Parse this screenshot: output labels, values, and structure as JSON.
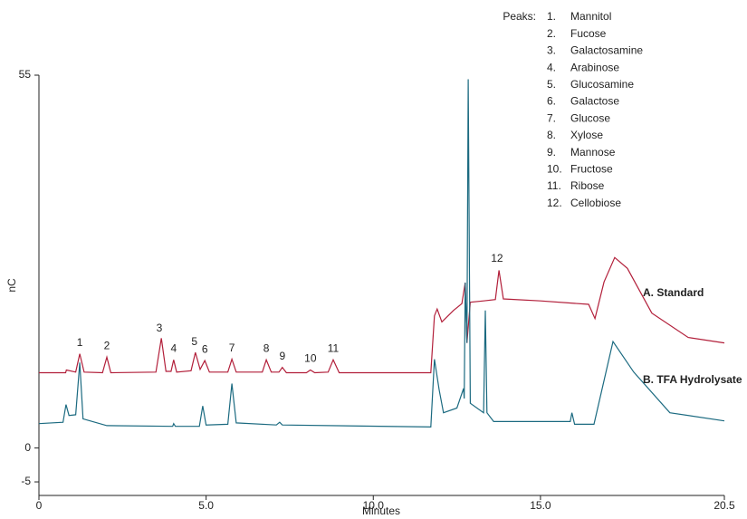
{
  "chart_data": {
    "type": "line",
    "x_label": "Minutes",
    "y_label": "nC",
    "xlim": [
      0,
      20.5
    ],
    "ylim": [
      -7,
      55
    ],
    "xticks": [
      0,
      {
        "value": 5,
        "label": "5.0"
      },
      {
        "value": 10,
        "label": "10.0"
      },
      {
        "value": 15,
        "label": "15.0"
      },
      20.5
    ],
    "yticks": [
      55,
      0,
      -5
    ],
    "series": [
      {
        "name": "A. Standard",
        "color": "#b21f3a",
        "x": [
          0,
          0.8,
          0.82,
          1.1,
          1.22,
          1.35,
          1.9,
          2.03,
          2.15,
          3.5,
          3.66,
          3.8,
          3.95,
          4.03,
          4.12,
          4.55,
          4.68,
          4.82,
          4.96,
          5.1,
          5.65,
          5.77,
          5.9,
          6.68,
          6.8,
          6.95,
          7.18,
          7.28,
          7.4,
          8.0,
          8.12,
          8.25,
          8.65,
          8.8,
          8.98,
          11.72,
          11.83,
          11.91,
          12.05,
          12.4,
          12.65,
          12.75,
          12.8,
          12.9,
          13.3,
          13.65,
          13.76,
          13.89,
          15.0,
          16.44,
          16.63,
          16.9,
          17.22,
          17.6,
          18.33,
          19.42,
          20.5
        ],
        "values": [
          11.1,
          11.1,
          11.5,
          11.2,
          13.9,
          11.2,
          11.1,
          13.4,
          11.1,
          11.2,
          16.2,
          11.3,
          11.3,
          13.0,
          11.2,
          11.4,
          14.1,
          11.6,
          12.9,
          11.2,
          11.2,
          13.1,
          11.2,
          11.2,
          13.0,
          11.2,
          11.2,
          11.9,
          11.1,
          11.1,
          11.5,
          11.1,
          11.2,
          13.0,
          11.1,
          11.1,
          19.5,
          20.5,
          18.6,
          20.3,
          21.3,
          24.4,
          15.5,
          21.5,
          21.7,
          21.9,
          26.2,
          22.0,
          21.7,
          21.2,
          19.1,
          24.5,
          28.1,
          26.5,
          19.9,
          16.3,
          15.5
        ]
      },
      {
        "name": "B. TFA Hydrolysate",
        "color": "#1b6a80",
        "x": [
          0,
          0.72,
          0.81,
          0.9,
          1.1,
          1.22,
          1.32,
          2.03,
          4.0,
          4.03,
          4.08,
          4.8,
          4.9,
          5.0,
          5.65,
          5.77,
          5.9,
          7.1,
          7.2,
          7.28,
          11.72,
          11.83,
          11.97,
          12.1,
          12.5,
          12.7,
          12.72,
          12.75,
          12.8,
          12.84,
          12.9,
          13.3,
          13.35,
          13.4,
          13.6,
          15.89,
          15.94,
          16.02,
          16.6,
          17.17,
          17.79,
          18.87,
          20.5
        ],
        "values": [
          3.6,
          3.8,
          6.4,
          4.8,
          4.9,
          12.6,
          4.3,
          3.3,
          3.2,
          3.6,
          3.2,
          3.2,
          6.2,
          3.4,
          3.5,
          9.5,
          3.7,
          3.4,
          3.8,
          3.4,
          3.1,
          13.1,
          8.6,
          5.2,
          5.9,
          8.8,
          7.3,
          24.4,
          15.5,
          54.4,
          6.6,
          5.2,
          20.3,
          5.2,
          3.9,
          3.9,
          5.2,
          3.5,
          3.5,
          15.7,
          11.2,
          5.2,
          4.0
        ]
      }
    ],
    "peak_labels": [
      {
        "label": "1",
        "x": 1.22,
        "y": 15.5
      },
      {
        "label": "2",
        "x": 2.03,
        "y": 15.0
      },
      {
        "label": "3",
        "x": 3.6,
        "y": 17.6
      },
      {
        "label": "4",
        "x": 4.03,
        "y": 14.6
      },
      {
        "label": "5",
        "x": 4.65,
        "y": 15.6
      },
      {
        "label": "6",
        "x": 4.96,
        "y": 14.5
      },
      {
        "label": "7",
        "x": 5.77,
        "y": 14.7
      },
      {
        "label": "8",
        "x": 6.8,
        "y": 14.6
      },
      {
        "label": "9",
        "x": 7.28,
        "y": 13.5
      },
      {
        "label": "10",
        "x": 8.12,
        "y": 13.1
      },
      {
        "label": "11",
        "x": 8.8,
        "y": 14.6
      },
      {
        "label": "12",
        "x": 13.7,
        "y": 27.9
      }
    ],
    "peaks_title": "Peaks:",
    "peaks_list": [
      {
        "number": "1.",
        "name": "Mannitol"
      },
      {
        "number": "2.",
        "name": "Fucose"
      },
      {
        "number": "3.",
        "name": "Galactosamine"
      },
      {
        "number": "4.",
        "name": "Arabinose"
      },
      {
        "number": "5.",
        "name": "Glucosamine"
      },
      {
        "number": "6.",
        "name": "Galactose"
      },
      {
        "number": "7.",
        "name": "Glucose"
      },
      {
        "number": "8.",
        "name": "Xylose"
      },
      {
        "number": "9.",
        "name": "Mannose"
      },
      {
        "number": "10.",
        "name": "Fructose"
      },
      {
        "number": "11.",
        "name": "Ribose"
      },
      {
        "number": "12.",
        "name": "Cellobiose"
      }
    ]
  }
}
